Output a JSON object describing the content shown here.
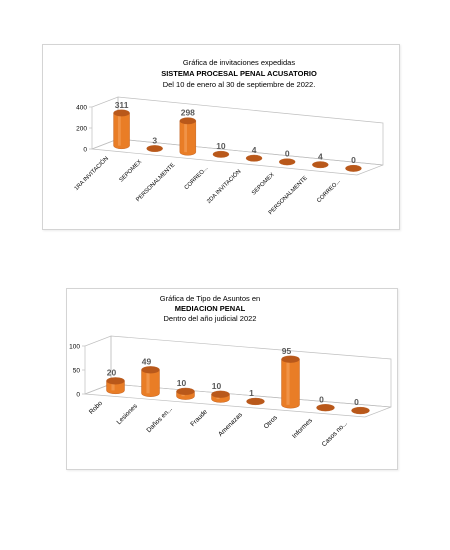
{
  "charts": [
    {
      "title_lines": [
        "Gráfica de invitaciones expedidas",
        "SISTEMA PROCESAL PENAL ACUSATORIO",
        "Del  10  de enero al 30 de septiembre de 2022."
      ],
      "y_ticks": [
        "400",
        "200",
        "0"
      ]
    },
    {
      "title_lines": [
        "Gráfica de Tipo de Asuntos en",
        "MEDIACION PENAL",
        "Dentro del año judicial 2022"
      ],
      "y_ticks": [
        "100",
        "50",
        "0"
      ]
    }
  ],
  "colors": {
    "bar": "#e97d26",
    "bar_dark": "#b9581a",
    "bar_light": "#f6a562",
    "label": "#595959"
  },
  "chart_data": [
    {
      "type": "bar",
      "title": "Gráfica de invitaciones expedidas SISTEMA PROCESAL PENAL ACUSATORIO Del  10  de enero al 30 de septiembre de 2022.",
      "categories": [
        "1RA INVITACIÓN",
        "SEPOMEX",
        "PERSONALMENTE",
        "CORREO...",
        "2DA INVITACIÓN",
        "SEPOMEX",
        "PERSONALMENTE",
        "CORREO..."
      ],
      "values": [
        311,
        3,
        298,
        10,
        4,
        0,
        4,
        0
      ],
      "ylim": [
        0,
        400
      ],
      "grid": false,
      "style": "3d-cylinder"
    },
    {
      "type": "bar",
      "title": "Gráfica de Tipo de Asuntos en MEDIACION PENAL Dentro del año judicial 2022",
      "categories": [
        "Robo",
        "Lesiones",
        "Daños en...",
        "Fraude",
        "Amenazas",
        "Otros",
        "Informes",
        "Casos no..."
      ],
      "values": [
        20,
        49,
        10,
        10,
        1,
        95,
        0,
        0
      ],
      "ylim": [
        0,
        100
      ],
      "grid": false,
      "style": "3d-cylinder"
    }
  ]
}
